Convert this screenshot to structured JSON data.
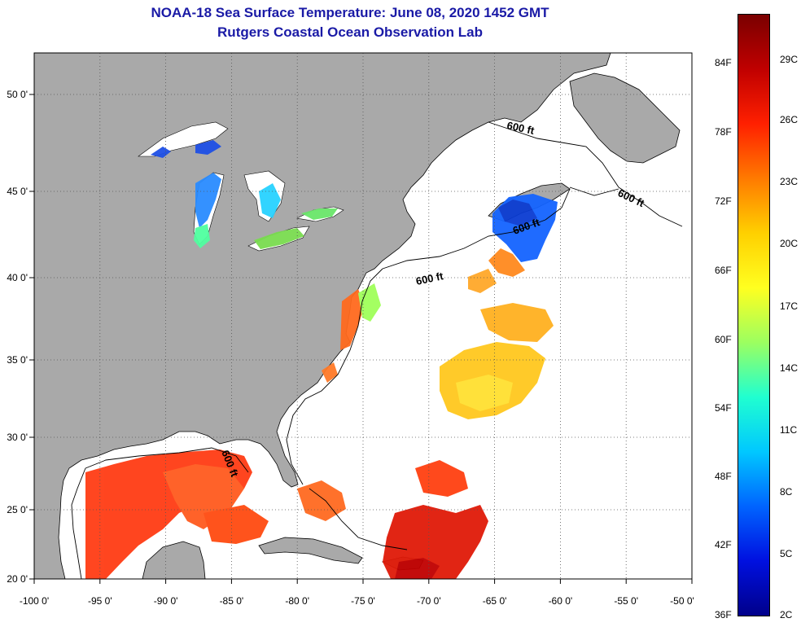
{
  "header": {
    "title": "NOAA-18 Sea Surface Temperature:  June 08, 2020 1452 GMT",
    "subtitle": "Rutgers Coastal Ocean Observation Lab"
  },
  "axes": {
    "longitude_ticks": [
      "-100 0'",
      "-95 0'",
      "-90 0'",
      "-85 0'",
      "-80 0'",
      "-75 0'",
      "-70 0'",
      "-65 0'",
      "-60 0'",
      "-55 0'",
      "-50 0'"
    ],
    "latitude_ticks": [
      "50 0'",
      "45 0'",
      "40 0'",
      "35 0'",
      "30 0'",
      "25 0'",
      "20 0'"
    ]
  },
  "contour_labels": [
    "600 ft",
    "600 ft",
    "600 ft",
    "600 ft",
    "600 ft"
  ],
  "colorbar": {
    "fahrenheit_labels": [
      "84F",
      "78F",
      "72F",
      "66F",
      "60F",
      "54F",
      "48F",
      "42F",
      "36F"
    ],
    "celsius_labels": [
      "29C",
      "26C",
      "23C",
      "20C",
      "17C",
      "14C",
      "11C",
      "8C",
      "5C",
      "2C"
    ],
    "colors": [
      "#7a0000",
      "#c00000",
      "#ff2000",
      "#ff7a00",
      "#ffd000",
      "#ffff20",
      "#9cff60",
      "#20ffd0",
      "#00c8ff",
      "#0064ff",
      "#0010e0",
      "#00008a"
    ]
  },
  "colors": {
    "land": "#a9a9a9",
    "ocean": "#ffffff",
    "title": "#1a1aa6"
  }
}
